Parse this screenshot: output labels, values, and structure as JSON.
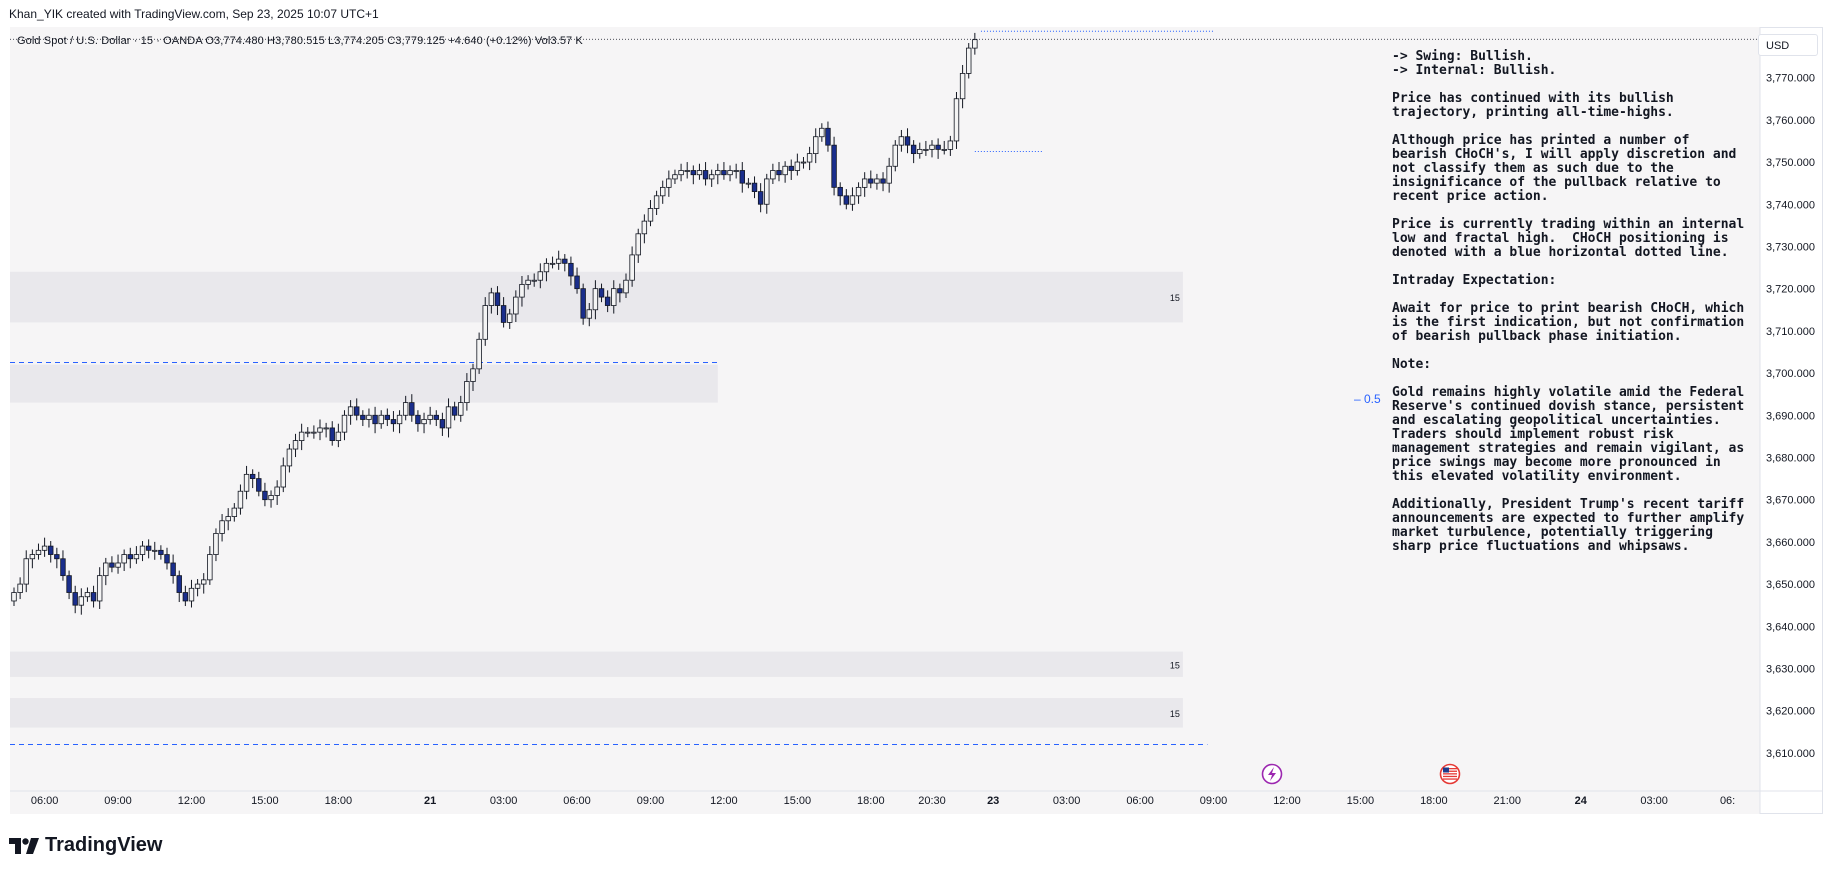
{
  "header": {
    "credit": "Khan_YIK created with TradingView.com, Sep 23, 2025 10:07 UTC+1"
  },
  "legend": {
    "text": "Gold Spot / U.S. Dollar · 15 · OANDA  O3,774.480  H3,780.515  L3,774.205  C3,779.125  +4.640 (+0.12%)  Vol3.57 K"
  },
  "price_scale": {
    "currency_button": "USD"
  },
  "annotation": {
    "paragraphs": [
      "-> Swing: Bullish.\n-> Internal: Bullish.",
      "Price has continued with its bullish trajectory, printing all-time-highs.",
      "Although price has printed a number of bearish CHoCH's, I will apply discretion and not classify them as such due to the insignificance of the pullback relative to recent price action.",
      "Price is currently trading within an internal low and fractal high.  CHoCH positioning is denoted with a blue horizontal dotted line.",
      "Intraday Expectation:",
      "Await for price to print bearish CHoCH, which is the first indication, but not confirmation of bearish pullback phase initiation.",
      "Note:",
      "Gold remains highly volatile amid the Federal Reserve's continued dovish stance, persistent and escalating geopolitical uncertainties. Traders should implement robust risk management strategies and remain vigilant, as price swings may become more pronounced in this elevated volatility environment.",
      "Additionally, President Trump's recent tariff announcements are expected to further amplify market turbulence, potentially triggering sharp price fluctuations and whipsaws."
    ]
  },
  "fib": {
    "label": "– 0.5"
  },
  "branding": {
    "logo_text": "TradingView"
  },
  "chart_data": {
    "type": "candlestick",
    "symbol": "Gold Spot / U.S. Dollar",
    "timeframe": "15",
    "exchange": "OANDA",
    "ylim": [
      3605,
      3782
    ],
    "y_ticks": [
      "3,770.000",
      "3,760.000",
      "3,750.000",
      "3,740.000",
      "3,730.000",
      "3,720.000",
      "3,710.000",
      "3,700.000",
      "3,690.000",
      "3,680.000",
      "3,670.000",
      "3,660.000",
      "3,650.000",
      "3,640.000",
      "3,630.000",
      "3,620.000",
      "3,610.000"
    ],
    "y_tick_values": [
      3770,
      3760,
      3750,
      3740,
      3730,
      3720,
      3710,
      3700,
      3690,
      3680,
      3670,
      3660,
      3650,
      3640,
      3630,
      3620,
      3610
    ],
    "x_ticks": [
      {
        "label": "06:00",
        "bar": 5,
        "bold": false
      },
      {
        "label": "09:00",
        "bar": 17,
        "bold": false
      },
      {
        "label": "12:00",
        "bar": 29,
        "bold": false
      },
      {
        "label": "15:00",
        "bar": 41,
        "bold": false
      },
      {
        "label": "18:00",
        "bar": 53,
        "bold": false
      },
      {
        "label": "21",
        "bar": 68,
        "bold": true
      },
      {
        "label": "03:00",
        "bar": 80,
        "bold": false
      },
      {
        "label": "06:00",
        "bar": 92,
        "bold": false
      },
      {
        "label": "09:00",
        "bar": 104,
        "bold": false
      },
      {
        "label": "12:00",
        "bar": 116,
        "bold": false
      },
      {
        "label": "15:00",
        "bar": 128,
        "bold": false
      },
      {
        "label": "18:00",
        "bar": 140,
        "bold": false
      },
      {
        "label": "20:30",
        "bar": 150,
        "bold": false
      },
      {
        "label": "23",
        "bar": 160,
        "bold": true
      },
      {
        "label": "03:00",
        "bar": 172,
        "bold": false
      },
      {
        "label": "06:00",
        "bar": 184,
        "bold": false
      },
      {
        "label": "09:00",
        "bar": 196,
        "bold": false
      },
      {
        "label": "12:00",
        "bar": 208,
        "bold": false
      },
      {
        "label": "15:00",
        "bar": 220,
        "bold": false
      },
      {
        "label": "18:00",
        "bar": 232,
        "bold": false
      },
      {
        "label": "21:00",
        "bar": 244,
        "bold": false
      },
      {
        "label": "24",
        "bar": 256,
        "bold": true
      },
      {
        "label": "03:00",
        "bar": 268,
        "bold": false
      },
      {
        "label": "06:",
        "bar": 280,
        "bold": false
      }
    ],
    "closes": [
      3648,
      3650,
      3656,
      3657,
      3658,
      3659,
      3657,
      3656,
      3652,
      3648,
      3645,
      3647,
      3648,
      3646,
      3652,
      3655,
      3654,
      3655,
      3657,
      3656,
      3657,
      3659,
      3658,
      3658,
      3657,
      3655,
      3652,
      3648,
      3646,
      3649,
      3650,
      3651,
      3657,
      3662,
      3665,
      3666,
      3668,
      3672,
      3676,
      3675,
      3672,
      3670,
      3671,
      3673,
      3678,
      3682,
      3684,
      3686,
      3686,
      3686,
      3687,
      3687,
      3684,
      3686,
      3690,
      3692,
      3690,
      3689,
      3690,
      3688,
      3690,
      3689,
      3688,
      3690,
      3693,
      3690,
      3688,
      3689,
      3690,
      3689,
      3687,
      3692,
      3690,
      3693,
      3698,
      3701,
      3708,
      3716,
      3719,
      3716,
      3712,
      3714,
      3718,
      3721,
      3722,
      3722,
      3724,
      3726,
      3726,
      3727,
      3726,
      3723,
      3720,
      3713,
      3715,
      3720,
      3718,
      3716,
      3720,
      3719,
      3722,
      3728,
      3733,
      3736,
      3739,
      3742,
      3744,
      3746,
      3747,
      3748,
      3748,
      3747,
      3748,
      3746,
      3747,
      3748,
      3747,
      3748,
      3748,
      3745,
      3745,
      3743,
      3740,
      3746,
      3748,
      3747,
      3749,
      3748,
      3750,
      3750,
      3752,
      3756,
      3758,
      3754,
      3744,
      3742,
      3740,
      3742,
      3744,
      3746,
      3745,
      3746,
      3745,
      3749,
      3754,
      3756,
      3754,
      3752,
      3753,
      3753,
      3754,
      3753,
      3753,
      3755,
      3765,
      3771,
      3777,
      3779
    ],
    "zones": [
      {
        "from": 3712,
        "to": 3724,
        "x_end_bar": 191,
        "label": "15"
      },
      {
        "from": 3693,
        "to": 3702,
        "x_end_bar": 115,
        "label": ""
      },
      {
        "from": 3628,
        "to": 3634,
        "x_end_bar": 191,
        "label": "15"
      },
      {
        "from": 3616,
        "to": 3623,
        "x_end_bar": 191,
        "label": "15"
      }
    ],
    "lines": [
      {
        "type": "dashed",
        "y": 3702.5,
        "x_end_bar": 115,
        "color": "#2962ff"
      },
      {
        "type": "dashed",
        "y": 3612,
        "x_end_bar": 195,
        "color": "#2962ff"
      },
      {
        "type": "dotted",
        "y": 3752.5,
        "x_start_bar": 157,
        "x_end_bar": 168,
        "color": "#2962ff"
      },
      {
        "type": "dotted",
        "y": 3781,
        "x_start_bar": 158,
        "x_end_bar": 196,
        "color": "#2962ff"
      }
    ],
    "last_price_line": 3779.1,
    "grid": false
  }
}
